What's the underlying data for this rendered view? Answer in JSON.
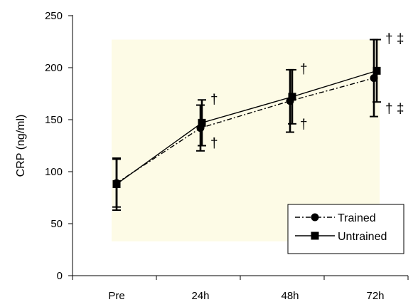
{
  "chart_data": {
    "type": "line",
    "title": "",
    "xlabel": "",
    "ylabel": "CRP (ng/ml)",
    "ylim": [
      0,
      250
    ],
    "yticks": [
      0,
      50,
      100,
      150,
      200,
      250
    ],
    "categories": [
      "Pre",
      "24h",
      "48h",
      "72h"
    ],
    "grid": false,
    "legend_position": "bottom-right",
    "background_colors": {
      "plot_area": "#fdfbe6",
      "page": "#ffffff"
    },
    "series": [
      {
        "name": "Trained",
        "marker": "circle",
        "line_style": "dash-dot",
        "color": "#000000",
        "values": [
          89,
          142,
          168,
          190
        ],
        "error": [
          23,
          22,
          30,
          37
        ],
        "annotations": [
          "",
          "†",
          "†",
          "† ‡"
        ]
      },
      {
        "name": "Untrained",
        "marker": "square",
        "line_style": "solid",
        "color": "#000000",
        "values": [
          88,
          147,
          172,
          197
        ],
        "error": [
          25,
          22,
          26,
          30
        ],
        "annotations": [
          "",
          "†",
          "†",
          "† ‡"
        ]
      }
    ]
  }
}
